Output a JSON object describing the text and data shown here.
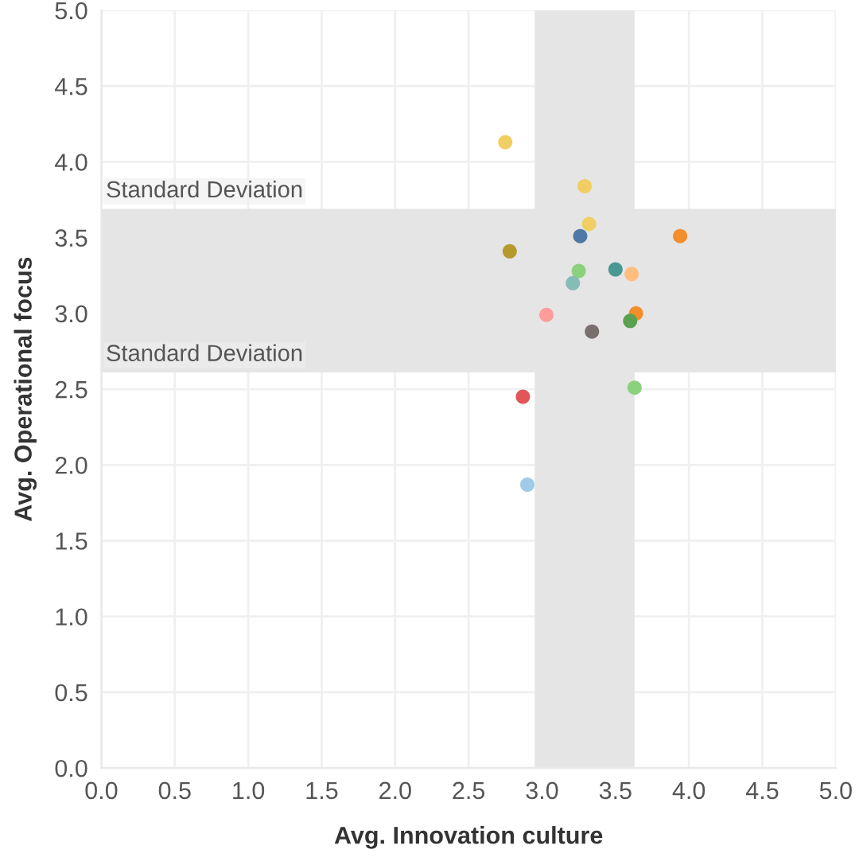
{
  "chart_data": {
    "type": "scatter",
    "xlabel": "Avg. Innovation culture",
    "ylabel": "Avg. Operational focus",
    "x": [
      2.75,
      3.29,
      3.32,
      3.26,
      3.94,
      2.78,
      3.25,
      3.5,
      3.61,
      3.21,
      3.03,
      3.64,
      3.6,
      3.34,
      3.63,
      2.87,
      2.9
    ],
    "values": [
      4.13,
      3.84,
      3.59,
      3.51,
      3.51,
      3.41,
      3.28,
      3.29,
      3.26,
      3.2,
      2.99,
      3.0,
      2.95,
      2.88,
      2.51,
      2.45,
      1.87
    ],
    "colors": [
      "#f1ce63",
      "#f1ce63",
      "#f1ce63",
      "#4e79a7",
      "#f28e2b",
      "#b6992d",
      "#8cd17d",
      "#499894",
      "#ffbe7d",
      "#86bcb6",
      "#ff9d9a",
      "#f28e2b",
      "#59a14f",
      "#79706e",
      "#8cd17d",
      "#e15759",
      "#a0cbe8"
    ],
    "xlim": [
      0,
      5
    ],
    "ylim": [
      0,
      5
    ],
    "xticks": [
      {
        "value": 0,
        "label": "0.0"
      },
      0.5,
      {
        "value": 1,
        "label": "1.0"
      },
      1.5,
      {
        "value": 2,
        "label": "2.0"
      },
      2.5,
      {
        "value": 3,
        "label": "3.0"
      },
      3.5,
      {
        "value": 4,
        "label": "4.0"
      },
      4.5,
      {
        "value": 5,
        "label": "5.0"
      }
    ],
    "yticks": [
      {
        "value": 0,
        "label": "0.0"
      },
      0.5,
      {
        "value": 1,
        "label": "1.0"
      },
      1.5,
      {
        "value": 2,
        "label": "2.0"
      },
      2.5,
      {
        "value": 3,
        "label": "3.0"
      },
      3.5,
      {
        "value": 4,
        "label": "4.0"
      },
      4.5,
      {
        "value": 5,
        "label": "5.0"
      }
    ],
    "bands": [
      {
        "axis": "y",
        "from": 2.61,
        "to": 3.69,
        "color": "#e5e5e5"
      },
      {
        "axis": "x",
        "from": 2.95,
        "to": 3.63,
        "color": "#e5e5e5"
      }
    ],
    "annotations": [
      {
        "text": "Standard Deviation",
        "x": 0,
        "y": 3.69
      },
      {
        "text": "Standard Deviation",
        "x": 0,
        "y": 2.61
      }
    ],
    "grid": true,
    "marker": "circle"
  }
}
